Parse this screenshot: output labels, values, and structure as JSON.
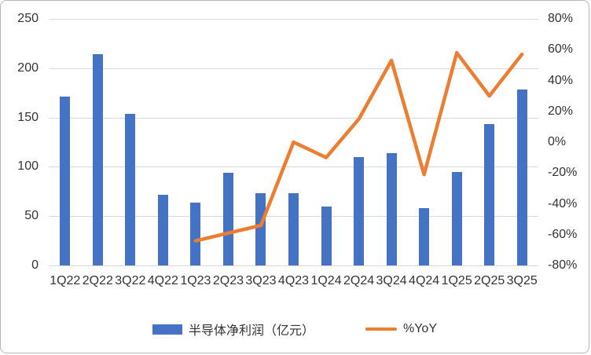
{
  "chart_data": {
    "type": "combo",
    "title": "",
    "categories": [
      "1Q22",
      "2Q22",
      "3Q22",
      "4Q22",
      "1Q23",
      "2Q23",
      "3Q23",
      "4Q23",
      "1Q24",
      "2Q24",
      "3Q24",
      "4Q24",
      "1Q25",
      "2Q25",
      "3Q25"
    ],
    "series": [
      {
        "name": "半导体净利润（亿元）",
        "type": "bar",
        "axis": "left",
        "color": "#4472C4",
        "values": [
          171,
          214,
          154,
          72,
          64,
          94,
          73,
          73,
          60,
          110,
          114,
          58,
          95,
          143,
          178
        ]
      },
      {
        "name": "%YoY",
        "type": "line",
        "axis": "right",
        "color": "#ED7D31",
        "values": [
          null,
          null,
          null,
          null,
          -64,
          -59,
          -54,
          0,
          -10,
          15,
          53,
          -21,
          58,
          30,
          57
        ]
      }
    ],
    "left_axis": {
      "min": 0,
      "max": 250,
      "tick_labels_top_to_bottom": [
        "250",
        "200",
        "150",
        "100",
        "50",
        "0"
      ]
    },
    "right_axis": {
      "min": -80,
      "max": 80,
      "tick_labels_top_to_bottom": [
        "80%",
        "60%",
        "40%",
        "20%",
        "0%",
        "-20%",
        "-40%",
        "-60%",
        "-80%"
      ]
    },
    "grid": true,
    "legend_position": "bottom"
  },
  "legend": {
    "bar_label": "半导体净利润（亿元）",
    "line_label": "%YoY"
  },
  "colors": {
    "bar": "#4472C4",
    "line": "#ED7D31",
    "gridline": "#D9D9D9",
    "text": "#333333",
    "border": "#B7B7B7",
    "background": "#FFFFFF"
  }
}
